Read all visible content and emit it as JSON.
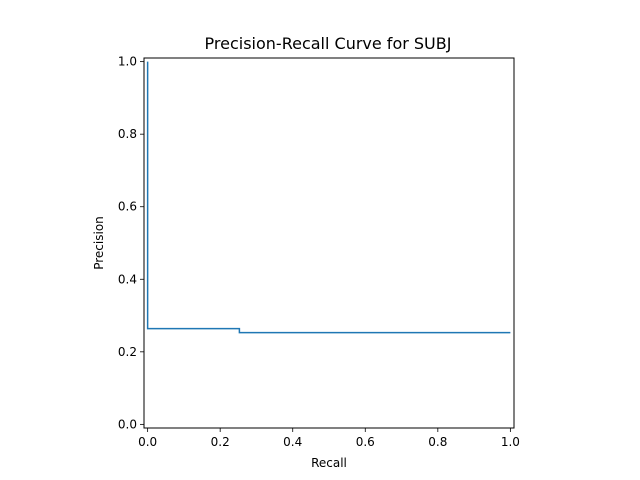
{
  "chart_data": {
    "type": "line",
    "title": "Precision-Recall Curve for SUBJ",
    "xlabel": "Recall",
    "ylabel": "Precision",
    "xlim": [
      -0.01,
      1.01
    ],
    "ylim": [
      -0.01,
      1.01
    ],
    "xticks": [
      "0.0",
      "0.2",
      "0.4",
      "0.6",
      "0.8",
      "1.0"
    ],
    "yticks": [
      "0.0",
      "0.2",
      "0.4",
      "0.6",
      "0.8",
      "1.0"
    ],
    "grid": false,
    "step": "post",
    "series": [
      {
        "color": "#1f77b4",
        "x": [
          0.0,
          0.0,
          0.253,
          0.253,
          1.0
        ],
        "y": [
          1.0,
          0.264,
          0.264,
          0.253,
          0.253
        ]
      }
    ]
  }
}
